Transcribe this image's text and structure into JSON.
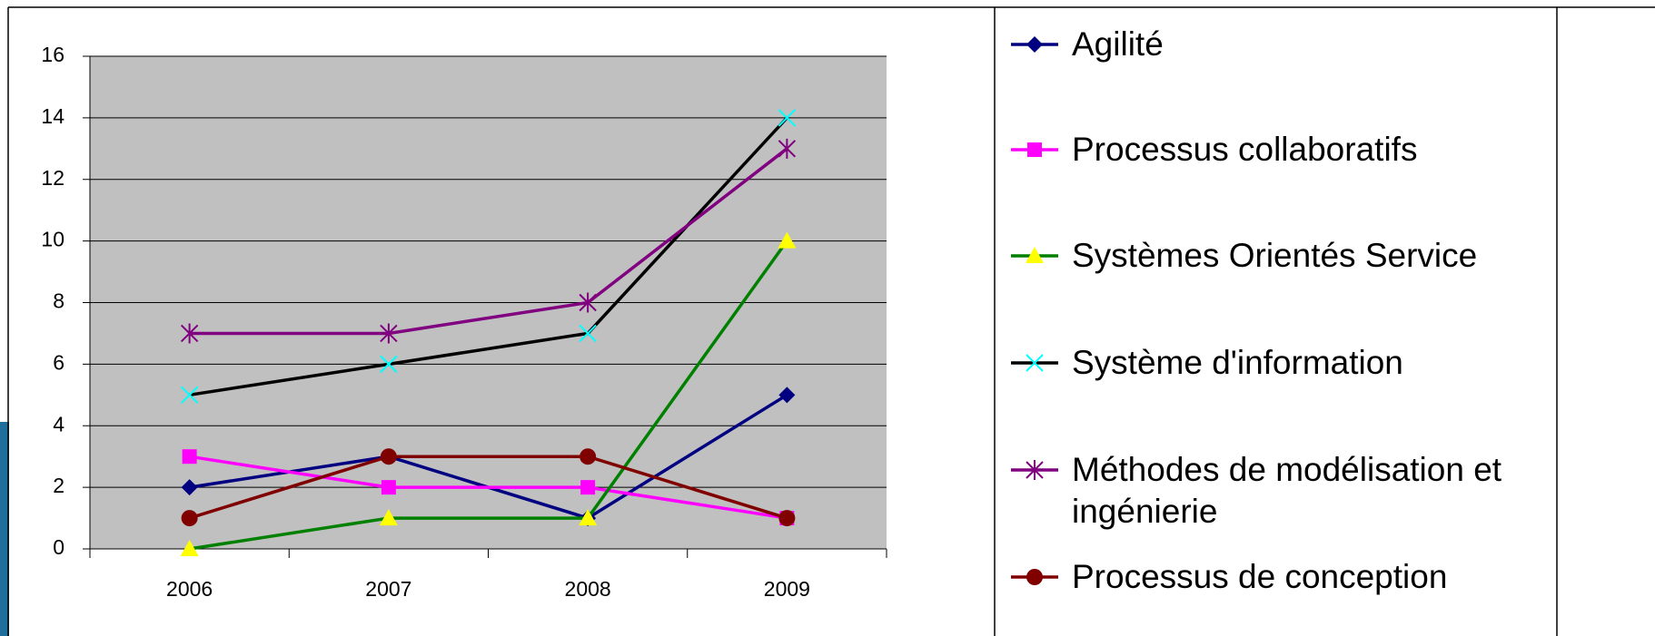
{
  "chart_data": {
    "type": "line",
    "categories": [
      "2006",
      "2007",
      "2008",
      "2009"
    ],
    "series": [
      {
        "name": "Agilité",
        "color": "#000080",
        "marker": "diamond",
        "marker_color": "#000080",
        "values": [
          2,
          3,
          1,
          5
        ]
      },
      {
        "name": "Processus collaboratifs",
        "color": "#ff00ff",
        "marker": "square",
        "marker_color": "#ff00ff",
        "values": [
          3,
          2,
          2,
          1
        ]
      },
      {
        "name": "Systèmes Orientés Service",
        "color": "#008000",
        "marker": "triangle",
        "marker_color": "#ffff00",
        "values": [
          0,
          1,
          1,
          10
        ]
      },
      {
        "name": "Système d'information",
        "color": "#000000",
        "marker": "x",
        "marker_color": "#00ffff",
        "values": [
          5,
          6,
          7,
          14
        ]
      },
      {
        "name": "Méthodes de modélisation et ingénierie",
        "color": "#800080",
        "marker": "star",
        "marker_color": "#800080",
        "values": [
          7,
          7,
          8,
          13
        ]
      },
      {
        "name": "Processus de conception",
        "color": "#800000",
        "marker": "circle",
        "marker_color": "#800000",
        "values": [
          1,
          3,
          3,
          1
        ]
      }
    ],
    "ylim": [
      0,
      16
    ],
    "yticks": [
      0,
      2,
      4,
      6,
      8,
      10,
      12,
      14,
      16
    ],
    "grid": true,
    "plot_background": "#c0c0c0",
    "legend": "right"
  }
}
